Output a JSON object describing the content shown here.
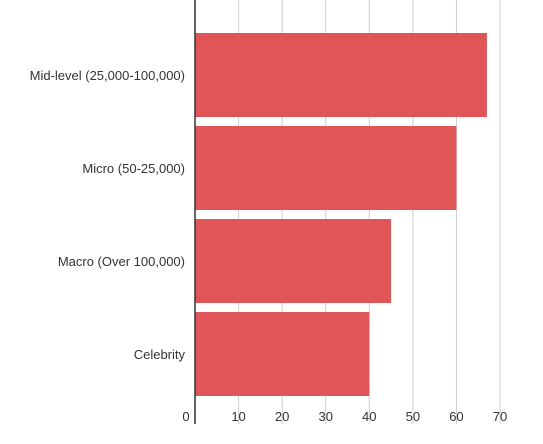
{
  "chart_data": {
    "type": "bar",
    "orientation": "horizontal",
    "categories": [
      "Mid-level (25,000-100,000)",
      "Micro (50-25,000)",
      "Macro (Over 100,000)",
      "Celebrity"
    ],
    "values": [
      67,
      60,
      45,
      40
    ],
    "xlim": [
      0,
      70
    ],
    "x_ticks": [
      "0",
      "10",
      "20",
      "30",
      "40",
      "50",
      "60",
      "70"
    ],
    "grid": "vertical",
    "legend": "none",
    "colors": {
      "bar": "#e05558",
      "grid": "#cfcfcf",
      "axis": "#333333",
      "text": "#333333"
    }
  }
}
